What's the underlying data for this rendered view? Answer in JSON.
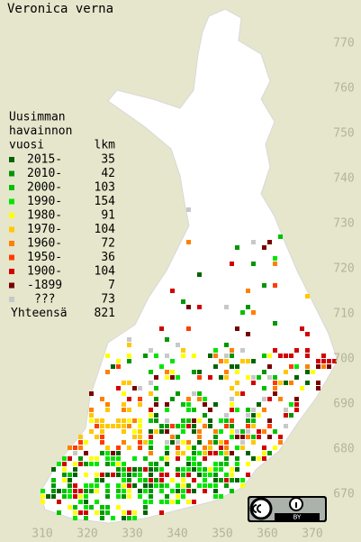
{
  "title": "Veronica verna",
  "legend": {
    "header": [
      "Uusimman",
      "havainnon",
      "vuosi"
    ],
    "count_header": "lkm",
    "items": [
      {
        "label": "2015-",
        "count": 35,
        "color": "#006400"
      },
      {
        "label": "2010-",
        "count": 42,
        "color": "#009600"
      },
      {
        "label": "2000-",
        "count": 103,
        "color": "#00c000"
      },
      {
        "label": "1990-",
        "count": 154,
        "color": "#00e600"
      },
      {
        "label": "1980-",
        "count": 91,
        "color": "#ffff00"
      },
      {
        "label": "1970-",
        "count": 104,
        "color": "#ffc800"
      },
      {
        "label": "1960-",
        "count": 72,
        "color": "#ff8000"
      },
      {
        "label": "1950-",
        "count": 36,
        "color": "#ff3c00"
      },
      {
        "label": "1900-",
        "count": 104,
        "color": "#d20000"
      },
      {
        "label": "-1899",
        "count": 7,
        "color": "#780000"
      },
      {
        "label": "???",
        "count": 73,
        "color": "#c8c8c8"
      }
    ],
    "total": {
      "label": "Yhteensä",
      "value": 821
    }
  },
  "axes": {
    "xticks": [
      310,
      320,
      330,
      340,
      350,
      360,
      370
    ],
    "yticks": [
      670,
      680,
      690,
      700,
      710,
      720,
      730,
      740,
      750,
      760,
      770
    ]
  },
  "license": {
    "label": "BY"
  }
}
